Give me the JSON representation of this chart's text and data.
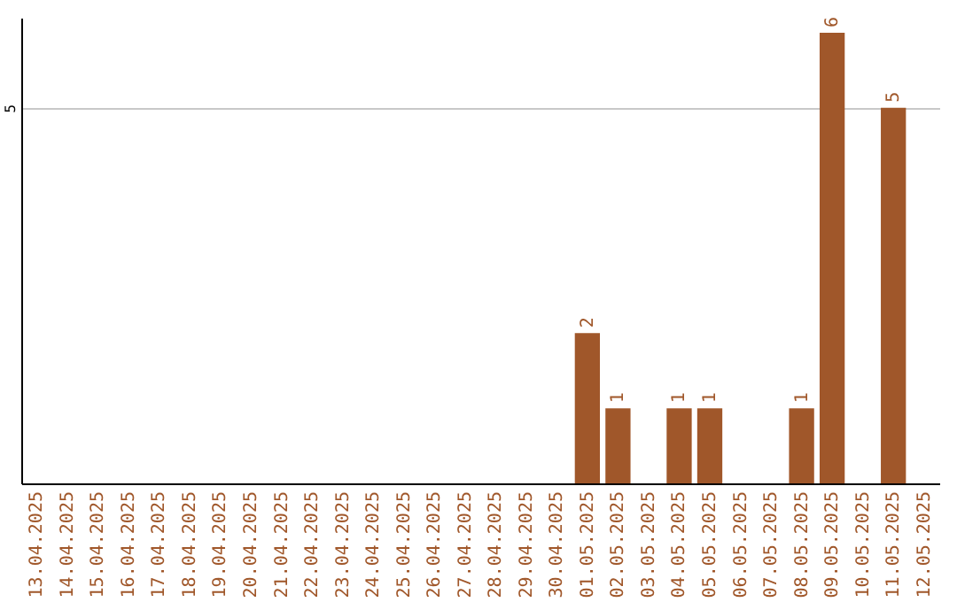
{
  "chart_data": {
    "type": "bar",
    "categories": [
      "13.04.2025",
      "14.04.2025",
      "15.04.2025",
      "16.04.2025",
      "17.04.2025",
      "18.04.2025",
      "19.04.2025",
      "20.04.2025",
      "21.04.2025",
      "22.04.2025",
      "23.04.2025",
      "24.04.2025",
      "25.04.2025",
      "26.04.2025",
      "27.04.2025",
      "28.04.2025",
      "29.04.2025",
      "30.04.2025",
      "01.05.2025",
      "02.05.2025",
      "03.05.2025",
      "04.05.2025",
      "05.05.2025",
      "06.05.2025",
      "07.05.2025",
      "08.05.2025",
      "09.05.2025",
      "10.05.2025",
      "11.05.2025",
      "12.05.2025"
    ],
    "values": [
      null,
      null,
      null,
      null,
      null,
      null,
      null,
      null,
      null,
      null,
      null,
      null,
      null,
      null,
      null,
      null,
      null,
      null,
      2,
      1,
      null,
      1,
      1,
      null,
      null,
      1,
      6,
      null,
      5,
      null
    ],
    "data_labels": true,
    "color": "#a0572a",
    "ylim": [
      0,
      6.2
    ],
    "yticks": [
      5
    ],
    "grid": "y"
  }
}
